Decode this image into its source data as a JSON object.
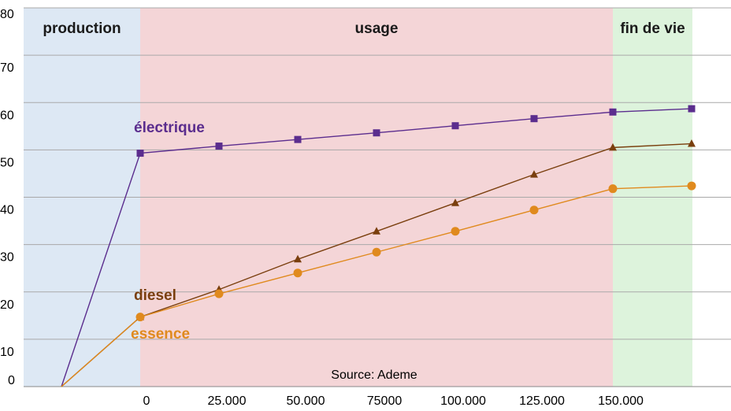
{
  "chart_data": {
    "type": "line",
    "y_ticks": [
      "0",
      "10",
      "20",
      "30",
      "40",
      "50",
      "60",
      "70",
      "80"
    ],
    "ylim": [
      0,
      80
    ],
    "x_tick_labels": [
      "0",
      "25.000",
      "50.000",
      "75000",
      "100.000",
      "125.000",
      "150.000"
    ],
    "phases": [
      {
        "label": "production",
        "color": "#dde8f4",
        "from": -1,
        "to": 0
      },
      {
        "label": "usage",
        "color": "#f4d5d7",
        "from": 0,
        "to": 6
      },
      {
        "label": "fin de vie",
        "color": "#ddf3dc",
        "from": 6,
        "to": 7
      }
    ],
    "grid": true,
    "series": [
      {
        "name": "électrique",
        "color": "#5b2d8e",
        "marker": "square",
        "x": [
          -1,
          0,
          1,
          2,
          3,
          4,
          5,
          6,
          7
        ],
        "values": [
          0,
          49.3,
          50.8,
          52.2,
          53.6,
          55.1,
          56.6,
          58.0,
          58.7
        ]
      },
      {
        "name": "diesel",
        "color": "#7a3f0e",
        "marker": "triangle",
        "x": [
          -1,
          0,
          1,
          2,
          3,
          4,
          5,
          6,
          7
        ],
        "values": [
          0,
          14.7,
          20.5,
          26.9,
          32.8,
          38.8,
          44.8,
          50.5,
          51.3
        ]
      },
      {
        "name": "essence",
        "color": "#e08a1e",
        "marker": "circle",
        "x": [
          -1,
          0,
          1,
          2,
          3,
          4,
          5,
          6,
          7
        ],
        "values": [
          0,
          14.7,
          19.6,
          24.0,
          28.4,
          32.8,
          37.3,
          41.8,
          42.4
        ]
      }
    ],
    "annotations": [
      "Source: Ademe"
    ]
  }
}
